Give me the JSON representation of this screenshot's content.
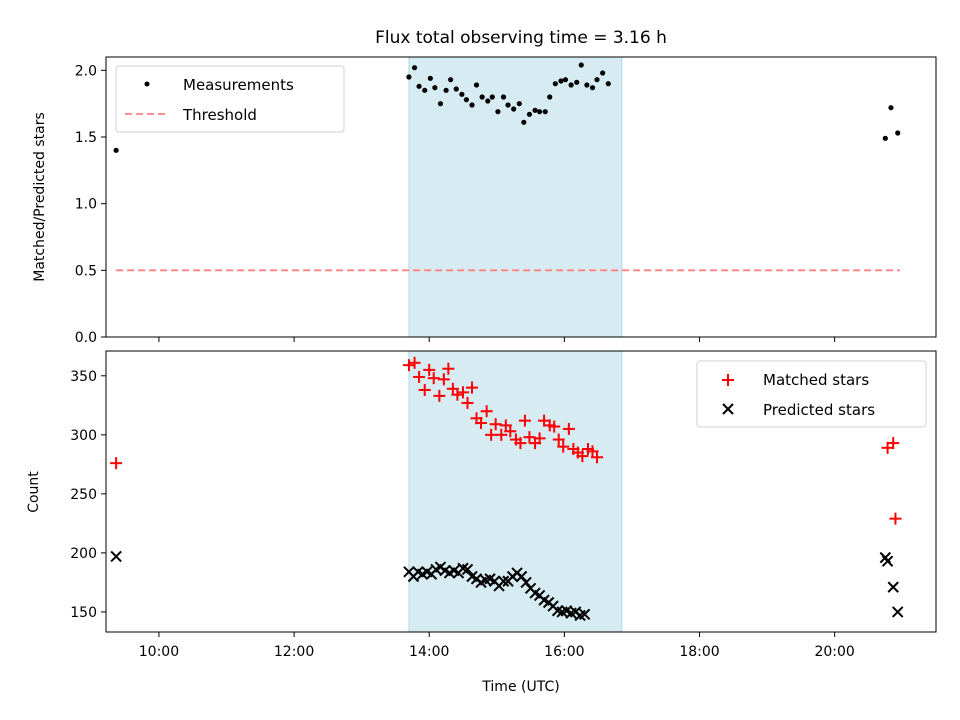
{
  "chart_data": [
    {
      "type": "scatter",
      "title": "Flux total observing time = 3.16 h",
      "xlabel": "",
      "ylabel": "Matched/Predicted stars",
      "ylim": [
        0,
        2.1
      ],
      "yticks": [
        "0.0",
        "0.5",
        "1.0",
        "1.5",
        "2.0"
      ],
      "xlim": [
        "09:13",
        "21:30"
      ],
      "xticks": [
        "10:00",
        "12:00",
        "14:00",
        "16:00",
        "18:00",
        "20:00"
      ],
      "show_xtick_labels": false,
      "grid": false,
      "legend": "top-left",
      "shaded_interval": [
        "13:42",
        "16:51"
      ],
      "shade_color": "#add8e6",
      "series": [
        {
          "name": "Measurements",
          "marker": "dot",
          "color": "#000000",
          "points": [
            [
              "09:22",
              1.4
            ],
            [
              "13:42",
              1.95
            ],
            [
              "13:47",
              2.02
            ],
            [
              "13:51",
              1.88
            ],
            [
              "13:56",
              1.85
            ],
            [
              "14:01",
              1.94
            ],
            [
              "14:05",
              1.87
            ],
            [
              "14:10",
              1.75
            ],
            [
              "14:15",
              1.85
            ],
            [
              "14:19",
              1.93
            ],
            [
              "14:24",
              1.86
            ],
            [
              "14:29",
              1.82
            ],
            [
              "14:33",
              1.78
            ],
            [
              "14:38",
              1.74
            ],
            [
              "14:42",
              1.89
            ],
            [
              "14:47",
              1.8
            ],
            [
              "14:52",
              1.77
            ],
            [
              "14:56",
              1.8
            ],
            [
              "15:01",
              1.69
            ],
            [
              "15:06",
              1.8
            ],
            [
              "15:10",
              1.74
            ],
            [
              "15:15",
              1.71
            ],
            [
              "15:20",
              1.75
            ],
            [
              "15:24",
              1.61
            ],
            [
              "15:29",
              1.67
            ],
            [
              "15:34",
              1.7
            ],
            [
              "15:38",
              1.69
            ],
            [
              "15:43",
              1.69
            ],
            [
              "15:47",
              1.8
            ],
            [
              "15:52",
              1.9
            ],
            [
              "15:57",
              1.92
            ],
            [
              "16:01",
              1.93
            ],
            [
              "16:06",
              1.89
            ],
            [
              "16:11",
              1.91
            ],
            [
              "16:15",
              2.04
            ],
            [
              "16:20",
              1.89
            ],
            [
              "16:25",
              1.87
            ],
            [
              "16:29",
              1.93
            ],
            [
              "16:34",
              1.98
            ],
            [
              "16:39",
              1.9
            ],
            [
              "20:45",
              1.49
            ],
            [
              "20:50",
              1.72
            ],
            [
              "20:56",
              1.53
            ]
          ]
        },
        {
          "name": "Threshold",
          "line": "dashed",
          "color": "#ff8080",
          "x": [
            "09:22",
            "20:58"
          ],
          "values": [
            0.5,
            0.5
          ]
        }
      ]
    },
    {
      "type": "scatter",
      "title": "",
      "xlabel": "Time (UTC)",
      "ylabel": "Count",
      "ylim": [
        133,
        371
      ],
      "yticks": [
        "150",
        "200",
        "250",
        "300",
        "350"
      ],
      "xlim": [
        "09:13",
        "21:30"
      ],
      "xticks": [
        "10:00",
        "12:00",
        "14:00",
        "16:00",
        "18:00",
        "20:00"
      ],
      "show_xtick_labels": true,
      "grid": false,
      "legend": "top-right",
      "shaded_interval": [
        "13:42",
        "16:51"
      ],
      "shade_color": "#add8e6",
      "series": [
        {
          "name": "Matched stars",
          "marker": "plus",
          "color": "#ff0000",
          "points": [
            [
              "09:22",
              276
            ],
            [
              "13:42",
              359
            ],
            [
              "13:47",
              361
            ],
            [
              "13:51",
              349
            ],
            [
              "13:56",
              338
            ],
            [
              "14:00",
              355
            ],
            [
              "14:04",
              348
            ],
            [
              "14:09",
              333
            ],
            [
              "14:13",
              347
            ],
            [
              "14:17",
              356
            ],
            [
              "14:21",
              339
            ],
            [
              "14:25",
              334
            ],
            [
              "14:30",
              336
            ],
            [
              "14:34",
              327
            ],
            [
              "14:38",
              340
            ],
            [
              "14:42",
              314
            ],
            [
              "14:46",
              310
            ],
            [
              "14:51",
              320
            ],
            [
              "14:55",
              300
            ],
            [
              "14:59",
              309
            ],
            [
              "15:04",
              300
            ],
            [
              "15:08",
              308
            ],
            [
              "15:12",
              303
            ],
            [
              "15:17",
              296
            ],
            [
              "15:21",
              293
            ],
            [
              "15:25",
              312
            ],
            [
              "15:29",
              298
            ],
            [
              "15:34",
              293
            ],
            [
              "15:38",
              297
            ],
            [
              "15:42",
              312
            ],
            [
              "15:47",
              308
            ],
            [
              "15:51",
              307
            ],
            [
              "15:55",
              296
            ],
            [
              "15:59",
              290
            ],
            [
              "16:04",
              305
            ],
            [
              "16:08",
              288
            ],
            [
              "16:12",
              285
            ],
            [
              "16:16",
              282
            ],
            [
              "16:21",
              288
            ],
            [
              "16:25",
              286
            ],
            [
              "16:29",
              281
            ],
            [
              "20:47",
              289
            ],
            [
              "20:52",
              293
            ],
            [
              "20:54",
              229
            ]
          ]
        },
        {
          "name": "Predicted stars",
          "marker": "x",
          "color": "#000000",
          "points": [
            [
              "09:22",
              197
            ],
            [
              "13:42",
              184
            ],
            [
              "13:46",
              180
            ],
            [
              "13:50",
              184
            ],
            [
              "13:54",
              182
            ],
            [
              "13:58",
              184
            ],
            [
              "14:02",
              182
            ],
            [
              "14:06",
              186
            ],
            [
              "14:10",
              188
            ],
            [
              "14:14",
              185
            ],
            [
              "14:18",
              183
            ],
            [
              "14:22",
              185
            ],
            [
              "14:26",
              183
            ],
            [
              "14:30",
              187
            ],
            [
              "14:34",
              186
            ],
            [
              "14:38",
              180
            ],
            [
              "14:42",
              178
            ],
            [
              "14:46",
              175
            ],
            [
              "14:50",
              177
            ],
            [
              "14:54",
              178
            ],
            [
              "14:58",
              176
            ],
            [
              "15:02",
              172
            ],
            [
              "15:06",
              176
            ],
            [
              "15:10",
              176
            ],
            [
              "15:14",
              180
            ],
            [
              "15:18",
              183
            ],
            [
              "15:22",
              180
            ],
            [
              "15:26",
              175
            ],
            [
              "15:30",
              170
            ],
            [
              "15:34",
              166
            ],
            [
              "15:38",
              164
            ],
            [
              "15:42",
              160
            ],
            [
              "15:46",
              158
            ],
            [
              "15:50",
              155
            ],
            [
              "15:54",
              151
            ],
            [
              "15:58",
              150
            ],
            [
              "16:02",
              151
            ],
            [
              "16:06",
              149
            ],
            [
              "16:10",
              150
            ],
            [
              "16:14",
              147
            ],
            [
              "16:18",
              148
            ],
            [
              "20:45",
              196
            ],
            [
              "20:47",
              193
            ],
            [
              "20:52",
              171
            ],
            [
              "20:56",
              150
            ]
          ]
        }
      ]
    }
  ]
}
